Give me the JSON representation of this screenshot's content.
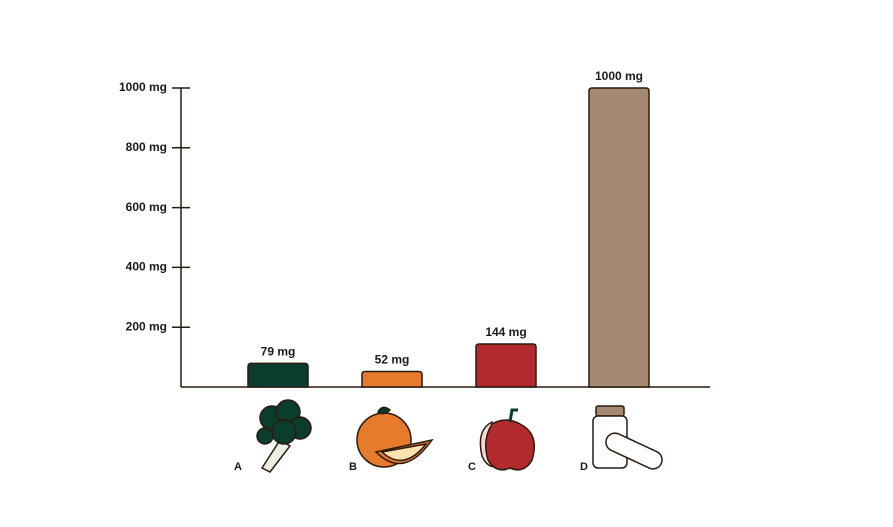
{
  "chart_data": {
    "type": "bar",
    "categories": [
      "A",
      "B",
      "C",
      "D"
    ],
    "values": [
      79,
      52,
      144,
      1000
    ],
    "value_labels": [
      "79 mg",
      "52 mg",
      "144 mg",
      "1000 mg"
    ],
    "colors": [
      "#0b3d2c",
      "#e87a2e",
      "#b22a2e",
      "#a58a72"
    ],
    "ylim": [
      0,
      1000
    ],
    "yticks": [
      {
        "value": 200,
        "label": "200 mg"
      },
      {
        "value": 400,
        "label": "400 mg"
      },
      {
        "value": 600,
        "label": "600 mg"
      },
      {
        "value": 800,
        "label": "800 mg"
      },
      {
        "value": 1000,
        "label": "1000 mg"
      }
    ]
  }
}
